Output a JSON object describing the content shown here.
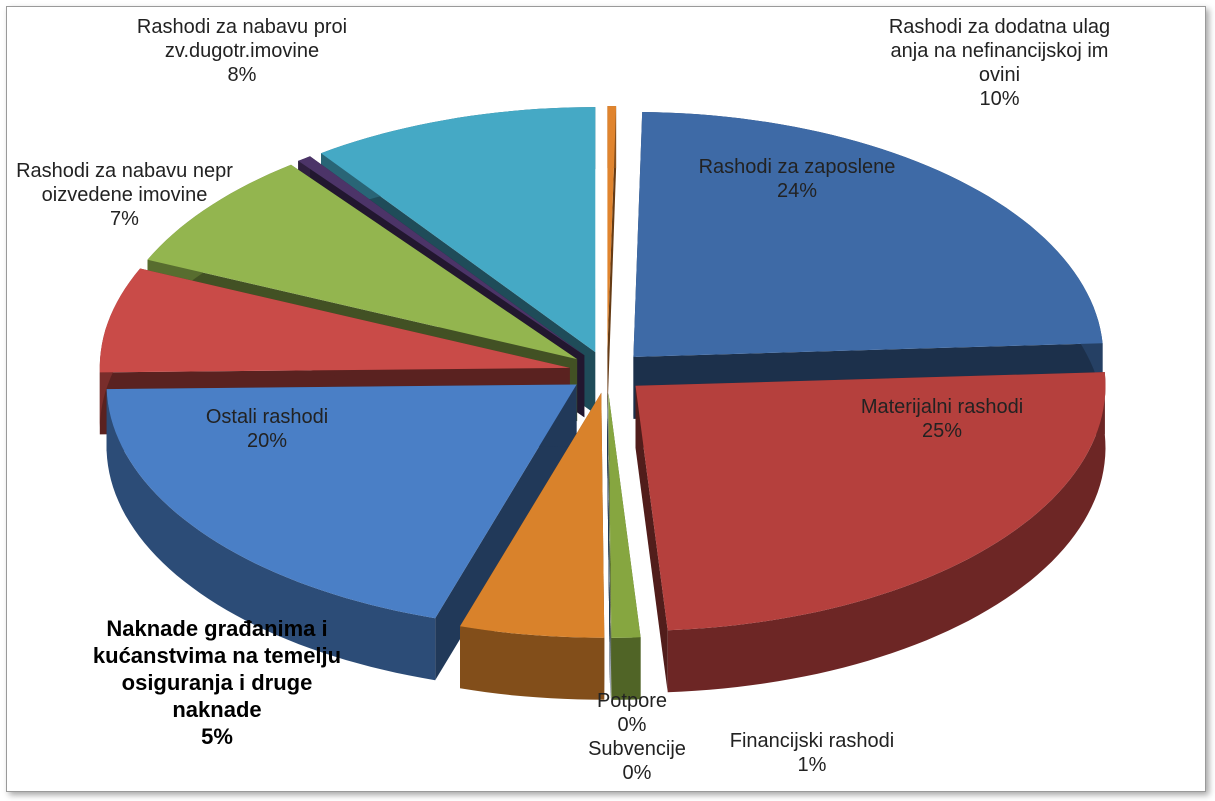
{
  "chart_data": {
    "type": "pie",
    "categories": [
      null,
      "Rashodi za zaposlene",
      "Materijalni rashodi",
      "Financijski rashodi",
      "Subvencije",
      "Potpore",
      "Naknade građanima i kućanstvima na temelju osiguranja i druge naknade",
      "Ostali rashodi",
      "Rashodi za nabavu neproizvedene imovine",
      "Rashodi za nabavu proizv.dugotr.imovine",
      null,
      "Rashodi za dodatna ulaganja na nefinancijskoj imovini"
    ],
    "values": [
      0.3,
      24,
      25,
      1,
      0,
      0,
      5,
      20,
      7,
      8,
      0.5,
      10
    ],
    "value_labels": [
      null,
      "24%",
      "25%",
      "1%",
      "0%",
      "0%",
      "5%",
      "20%",
      "7%",
      "8%",
      null,
      "10%"
    ],
    "colors": [
      "#e0842e",
      "#3e6aa6",
      "#b5403d",
      "#86a640",
      "#3d3563",
      "#3f7fc0",
      "#d9822b",
      "#4a7fc6",
      "#c94b48",
      "#93b54f",
      "#4c3468",
      "#45a9c5"
    ]
  }
}
